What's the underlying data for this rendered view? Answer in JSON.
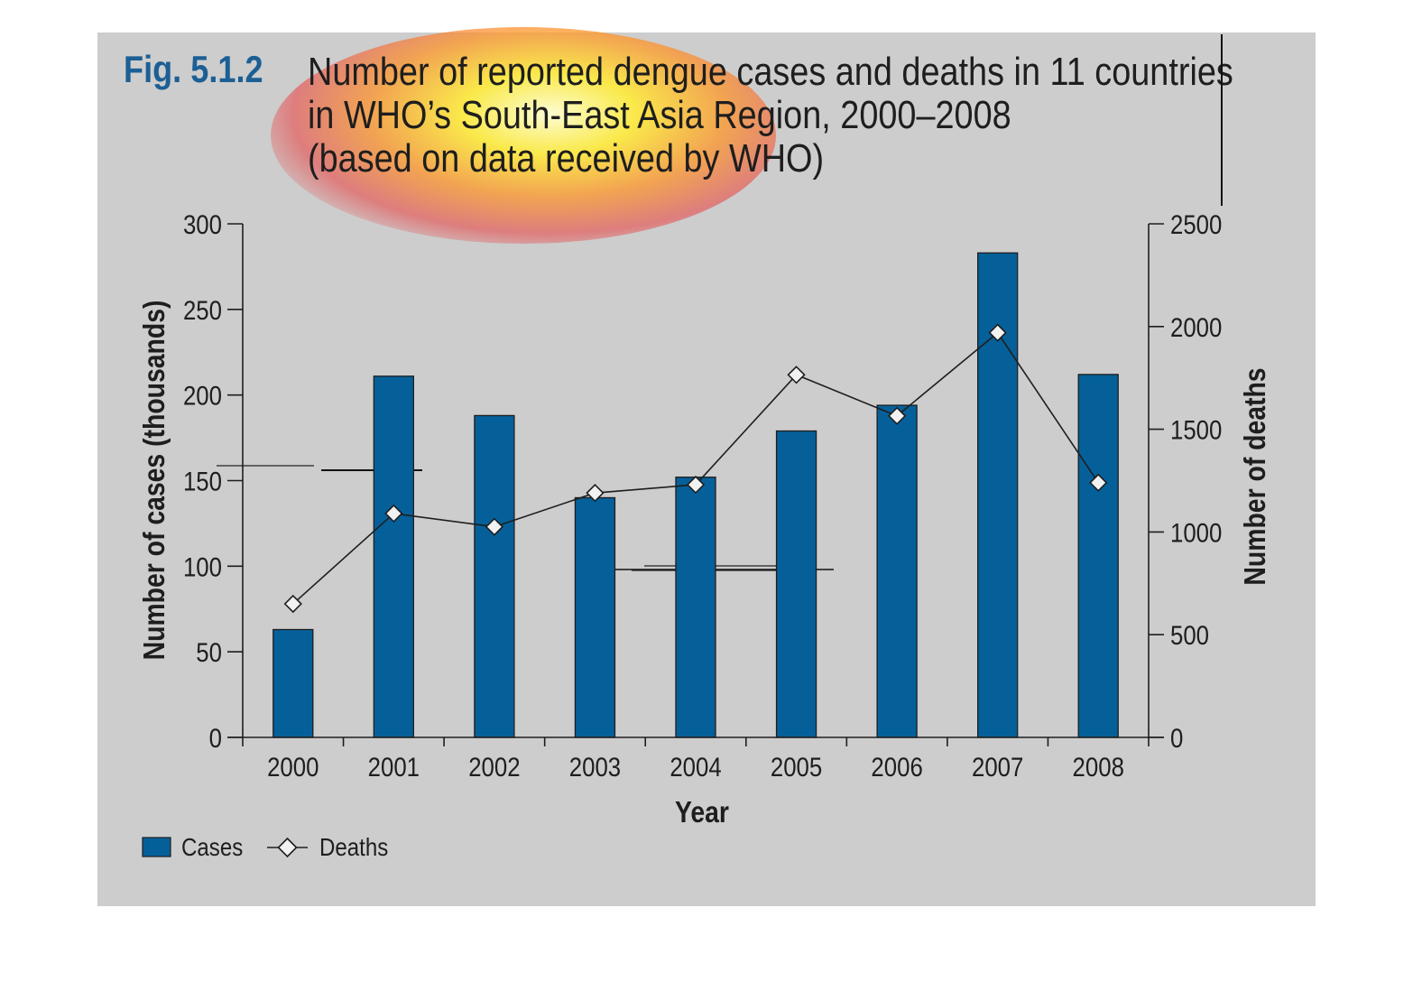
{
  "figure": {
    "number": "Fig. 5.1.2",
    "title_lines": [
      "Number of reported dengue cases and deaths in 11 countries",
      "in WHO’s South-East Asia Region, 2000–2008",
      "(based on data received by WHO)"
    ]
  },
  "chart_data": {
    "type": "bar",
    "categories": [
      "2000",
      "2001",
      "2002",
      "2003",
      "2004",
      "2005",
      "2006",
      "2007",
      "2008"
    ],
    "series": [
      {
        "name": "Cases",
        "type": "bar",
        "axis": "left",
        "values": [
          63,
          211,
          188,
          140,
          152,
          179,
          194,
          283,
          212
        ]
      },
      {
        "name": "Deaths",
        "type": "line",
        "marker": "diamond",
        "axis": "right",
        "values": [
          650,
          1090,
          1025,
          1190,
          1230,
          1765,
          1565,
          1970,
          1240
        ]
      }
    ],
    "xlabel": "Year",
    "ylabel_left": "Number of cases (thousands)",
    "ylabel_right": "Number of deaths",
    "ylim_left": [
      0,
      300
    ],
    "ylim_right": [
      0,
      2500
    ],
    "yticks_left": [
      "0",
      "50",
      "100",
      "150",
      "200",
      "250",
      "300"
    ],
    "yticks_right": [
      "0",
      "500",
      "1000",
      "1500",
      "2000",
      "2500"
    ],
    "legend": [
      "Cases",
      "Deaths"
    ],
    "legend_position": "bottom-left",
    "grid": false,
    "colors": {
      "bar": "#05609a",
      "line": "#1e1e1e",
      "marker_fill": "#f2f2f2",
      "background": "#cdcdcd",
      "fig_number": "#1c5f95"
    }
  }
}
